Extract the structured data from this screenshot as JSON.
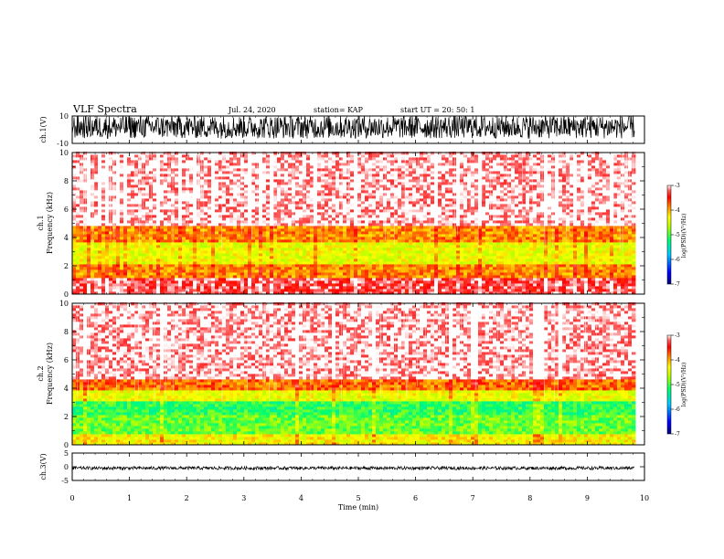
{
  "header": {
    "title": "VLF Spectra",
    "date": "Jul. 24, 2020",
    "station": "station= KAP",
    "start": "start  UT =   20: 50: 1"
  },
  "chart_data": [
    {
      "type": "line",
      "name": "ch.1 waveform",
      "ylabel": "ch.1(V)",
      "ylim": [
        -10,
        10
      ],
      "yticks": [
        "10",
        "-10"
      ],
      "xlim": [
        0,
        10
      ],
      "description_values": {
        "typical_range": [
          -7,
          10
        ],
        "mean": 2
      }
    },
    {
      "type": "heatmap",
      "name": "ch.1 spectrogram",
      "ylabel": "ch.1\nFrequency (kHz)",
      "ylim": [
        0,
        10
      ],
      "yticks": [
        "0",
        "2",
        "4",
        "6",
        "8",
        "10"
      ],
      "xlim": [
        0,
        9.83
      ],
      "bands": [
        {
          "f_from": 0,
          "f_to": 1.0,
          "logpsd": -3.3
        },
        {
          "f_from": 1.0,
          "f_to": 2.0,
          "logpsd": -3.9
        },
        {
          "f_from": 2.0,
          "f_to": 3.6,
          "logpsd": -4.4
        },
        {
          "f_from": 3.6,
          "f_to": 4.8,
          "logpsd": -3.9
        },
        {
          "f_from": 4.8,
          "f_to": 10,
          "logpsd": -3.05
        }
      ],
      "colorbar": {
        "label": "log(PSD)(V²/Hz)",
        "min": -7,
        "max": -3,
        "ticks": [
          "-3",
          "-4",
          "-5",
          "-6",
          "-7"
        ]
      }
    },
    {
      "type": "heatmap",
      "name": "ch.2 spectrogram",
      "ylabel": "ch.2\nFrequency (kHz)",
      "ylim": [
        0,
        10
      ],
      "yticks": [
        "0",
        "2",
        "4",
        "6",
        "8",
        "10"
      ],
      "xlim": [
        0,
        9.83
      ],
      "bands": [
        {
          "f_from": 0,
          "f_to": 0.6,
          "logpsd": -4.3
        },
        {
          "f_from": 0.6,
          "f_to": 2.0,
          "logpsd": -4.9
        },
        {
          "f_from": 2.0,
          "f_to": 3.0,
          "logpsd": -5.1
        },
        {
          "f_from": 3.0,
          "f_to": 3.8,
          "logpsd": -4.4
        },
        {
          "f_from": 3.8,
          "f_to": 4.6,
          "logpsd": -3.8
        },
        {
          "f_from": 4.6,
          "f_to": 10,
          "logpsd": -3.05
        }
      ],
      "colorbar": {
        "label": "log(PSD)(V²/Hz)",
        "min": -7,
        "max": -3,
        "ticks": [
          "-3",
          "-4",
          "-5",
          "-6",
          "-7"
        ]
      }
    },
    {
      "type": "line",
      "name": "ch.3 waveform",
      "ylabel": "ch.3(V)",
      "ylim": [
        -5,
        5
      ],
      "yticks": [
        "5",
        "0",
        "-5"
      ],
      "xlim": [
        0,
        10
      ],
      "description_values": {
        "level": -0.5,
        "amplitude": 0.6
      }
    }
  ],
  "xaxis": {
    "label": "Time (min)",
    "ticks": [
      "0",
      "1",
      "2",
      "3",
      "4",
      "5",
      "6",
      "7",
      "8",
      "9",
      "10"
    ],
    "range": [
      0,
      10
    ]
  },
  "colors": {
    "cmap": [
      "#00007a",
      "#0000ff",
      "#00c8ff",
      "#00ff70",
      "#b4ff00",
      "#ffff00",
      "#ff8800",
      "#ff0000",
      "#ff6060",
      "#ffffff"
    ]
  }
}
